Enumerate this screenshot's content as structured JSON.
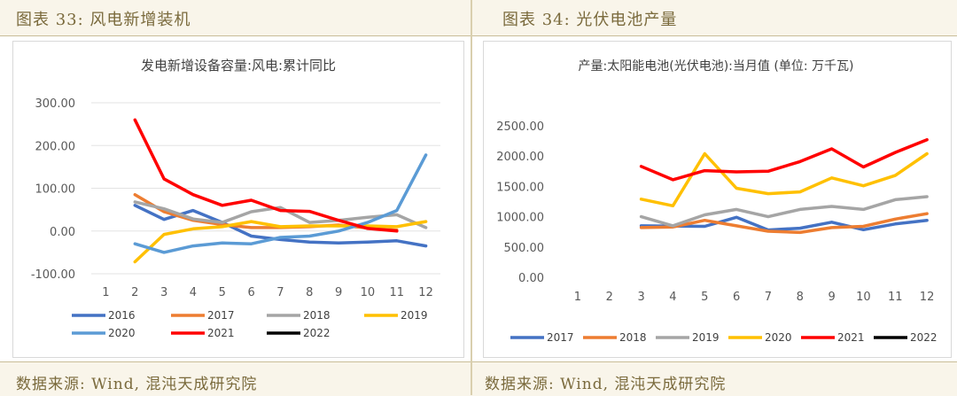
{
  "left_panel": {
    "header": "图表 33: 风电新增装机",
    "footer": "数据来源: Wind, 混沌天成研究院"
  },
  "right_panel": {
    "header": "图表 34: 光伏电池产量",
    "footer": "数据来源: Wind, 混沌天成研究院"
  },
  "chart_data": [
    {
      "type": "line",
      "title": "发电新增设备容量:风电:累计同比",
      "xlabel": "",
      "ylabel": "",
      "categories": [
        "1",
        "2",
        "3",
        "4",
        "5",
        "6",
        "7",
        "8",
        "9",
        "10",
        "11",
        "12"
      ],
      "ylim": [
        -100,
        300
      ],
      "yticks": [
        300,
        200,
        100,
        0,
        -100
      ],
      "ytick_labels": [
        "300.00",
        "200.00",
        "100.00",
        "0.00",
        "-100.00"
      ],
      "grid": true,
      "legend_position": "bottom",
      "series": [
        {
          "name": "2016",
          "color": "#4472c4",
          "values": [
            null,
            60,
            27,
            48,
            20,
            -12,
            -20,
            -26,
            -28,
            -26,
            -23,
            -35
          ]
        },
        {
          "name": "2017",
          "color": "#ed7d31",
          "values": [
            null,
            85,
            45,
            25,
            15,
            8,
            8,
            10,
            14,
            7,
            2,
            null
          ]
        },
        {
          "name": "2018",
          "color": "#a5a5a5",
          "values": [
            null,
            68,
            52,
            28,
            20,
            45,
            55,
            20,
            25,
            32,
            38,
            8
          ]
        },
        {
          "name": "2019",
          "color": "#ffc000",
          "values": [
            null,
            -72,
            -8,
            5,
            10,
            22,
            10,
            12,
            12,
            12,
            10,
            22
          ]
        },
        {
          "name": "2020",
          "color": "#5b9bd5",
          "values": [
            null,
            -30,
            -50,
            -35,
            -28,
            -30,
            -15,
            -12,
            0,
            20,
            48,
            178
          ]
        },
        {
          "name": "2021",
          "color": "#ff0000",
          "values": [
            null,
            260,
            122,
            85,
            60,
            72,
            48,
            46,
            25,
            6,
            0,
            null
          ]
        },
        {
          "name": "2022",
          "color": "#000000",
          "values": [
            null,
            null,
            null,
            null,
            null,
            null,
            null,
            null,
            null,
            null,
            null,
            null
          ]
        }
      ]
    },
    {
      "type": "line",
      "title": "产量:太阳能电池(光伏电池):当月值 (单位: 万千瓦)",
      "xlabel": "",
      "ylabel": "",
      "categories": [
        "1",
        "2",
        "3",
        "4",
        "5",
        "6",
        "7",
        "8",
        "9",
        "10",
        "11",
        "12"
      ],
      "ylim": [
        0,
        2500
      ],
      "yticks": [
        2500,
        2000,
        1500,
        1000,
        500,
        0
      ],
      "ytick_labels": [
        "2500.00",
        "2000.00",
        "1500.00",
        "1000.00",
        "500.00",
        "0.00"
      ],
      "grid": false,
      "legend_position": "bottom",
      "series": [
        {
          "name": "2017",
          "color": "#4472c4",
          "values": [
            null,
            null,
            850,
            845,
            840,
            990,
            780,
            810,
            910,
            785,
            880,
            940
          ]
        },
        {
          "name": "2018",
          "color": "#ed7d31",
          "values": [
            null,
            null,
            820,
            830,
            940,
            850,
            760,
            740,
            820,
            840,
            960,
            1050
          ]
        },
        {
          "name": "2019",
          "color": "#a5a5a5",
          "values": [
            null,
            null,
            1000,
            850,
            1030,
            1120,
            1000,
            1120,
            1170,
            1120,
            1280,
            1330
          ]
        },
        {
          "name": "2020",
          "color": "#ffc000",
          "values": [
            null,
            null,
            1290,
            1180,
            2040,
            1470,
            1380,
            1410,
            1640,
            1510,
            1680,
            2040
          ]
        },
        {
          "name": "2021",
          "color": "#ff0000",
          "values": [
            null,
            null,
            1830,
            1610,
            1760,
            1740,
            1750,
            1910,
            2120,
            1820,
            2060,
            2270
          ]
        },
        {
          "name": "2022",
          "color": "#000000",
          "values": [
            null,
            null,
            null,
            null,
            null,
            null,
            null,
            null,
            null,
            null,
            null,
            null
          ]
        }
      ]
    }
  ]
}
